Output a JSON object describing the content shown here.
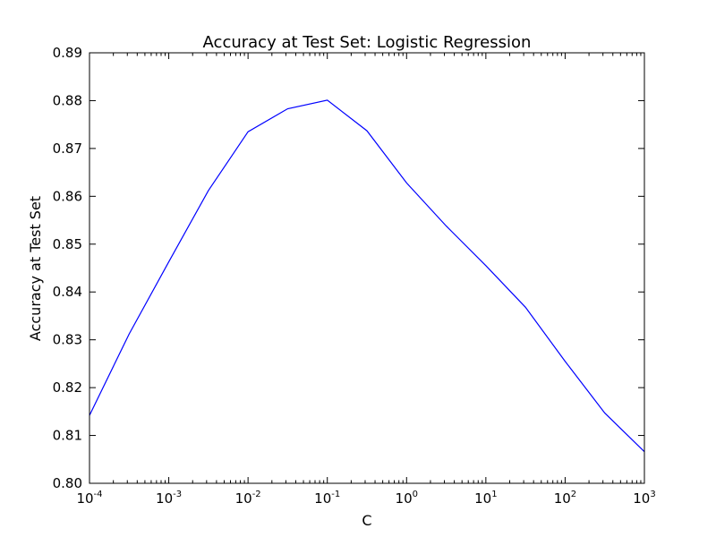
{
  "chart_data": {
    "type": "line",
    "title": "Accuracy at Test Set: Logistic Regression",
    "xlabel": "C",
    "ylabel": "Accuracy at Test Set",
    "x_scale": "log",
    "xlim": [
      0.0001,
      1000
    ],
    "ylim": [
      0.8,
      0.89
    ],
    "grid": false,
    "line_color": "#0000ff",
    "x_ticks": [
      {
        "base": "10",
        "exp": "-4",
        "value": 0.0001
      },
      {
        "base": "10",
        "exp": "-3",
        "value": 0.001
      },
      {
        "base": "10",
        "exp": "-2",
        "value": 0.01
      },
      {
        "base": "10",
        "exp": "-1",
        "value": 0.1
      },
      {
        "base": "10",
        "exp": "0",
        "value": 1
      },
      {
        "base": "10",
        "exp": "1",
        "value": 10
      },
      {
        "base": "10",
        "exp": "2",
        "value": 100
      },
      {
        "base": "10",
        "exp": "3",
        "value": 1000
      }
    ],
    "y_ticks": [
      {
        "label": "0.80",
        "value": 0.8
      },
      {
        "label": "0.81",
        "value": 0.81
      },
      {
        "label": "0.82",
        "value": 0.82
      },
      {
        "label": "0.83",
        "value": 0.83
      },
      {
        "label": "0.84",
        "value": 0.84
      },
      {
        "label": "0.85",
        "value": 0.85
      },
      {
        "label": "0.86",
        "value": 0.86
      },
      {
        "label": "0.87",
        "value": 0.87
      },
      {
        "label": "0.88",
        "value": 0.88
      },
      {
        "label": "0.89",
        "value": 0.89
      }
    ],
    "series": [
      {
        "x": [
          0.0001,
          0.000316,
          0.001,
          0.00316,
          0.01,
          0.0316,
          0.1,
          0.316,
          1,
          3.16,
          10,
          31.6,
          100,
          316,
          1000
        ],
        "y": [
          0.8142,
          0.8312,
          0.8463,
          0.8612,
          0.8735,
          0.8783,
          0.8801,
          0.8737,
          0.8628,
          0.8538,
          0.8455,
          0.8368,
          0.8255,
          0.8147,
          0.8066
        ]
      }
    ]
  }
}
